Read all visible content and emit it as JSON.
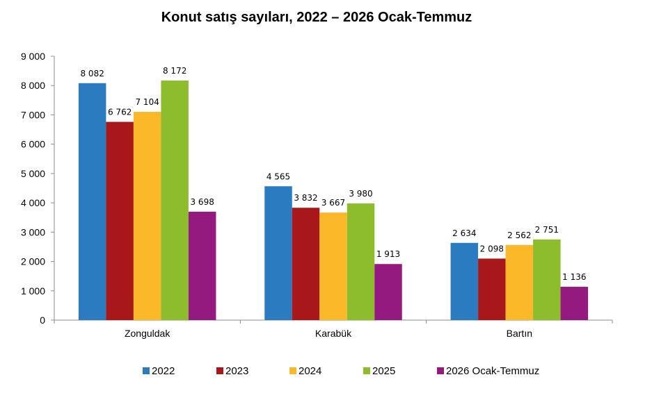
{
  "chart_data": {
    "type": "bar",
    "title": "Konut satış sayıları, 2022 – 2026 Ocak-Temmuz",
    "categories": [
      "Zonguldak",
      "Karabük",
      "Bartın"
    ],
    "series": [
      {
        "name": "2022",
        "color": "#2b7bc1",
        "values": [
          8082,
          4565,
          2634
        ],
        "labels": [
          "8 082",
          "4 565",
          "2 634"
        ]
      },
      {
        "name": "2023",
        "color": "#a8181a",
        "values": [
          6762,
          3832,
          2098
        ],
        "labels": [
          "6 762",
          "3 832",
          "2 098"
        ]
      },
      {
        "name": "2024",
        "color": "#fbb829",
        "values": [
          7104,
          3667,
          2562
        ],
        "labels": [
          "7 104",
          "3 667",
          "2 562"
        ]
      },
      {
        "name": "2025",
        "color": "#8dbc2c",
        "values": [
          8172,
          3980,
          2751
        ],
        "labels": [
          "8 172",
          "3 980",
          "2 751"
        ]
      },
      {
        "name": "2026 Ocak-Temmuz",
        "color": "#951a80",
        "values": [
          3698,
          1913,
          1136
        ],
        "labels": [
          "3 698",
          "1 913",
          "1 136"
        ]
      }
    ],
    "yticks": [
      "0",
      "1 000",
      "2 000",
      "3 000",
      "4 000",
      "5 000",
      "6 000",
      "7 000",
      "8 000",
      "9 000"
    ],
    "ylim": [
      0,
      9000
    ],
    "grid": false,
    "legend_position": "bottom"
  }
}
